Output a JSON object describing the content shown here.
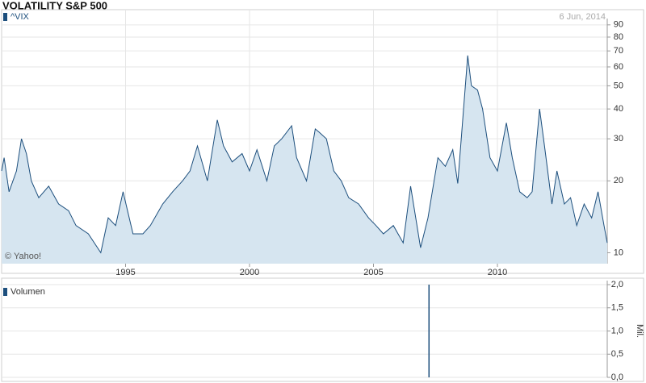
{
  "chart_data": [
    {
      "type": "line",
      "title": "VOLATILITY S&P 500",
      "date": "6 Jun, 2014",
      "source": "© Yahoo!",
      "log_y": true,
      "grid": true,
      "xlim": [
        1990,
        2014.43
      ],
      "xticks": [
        1995,
        2000,
        2005,
        2010
      ],
      "ylim": [
        9,
        92
      ],
      "yticks": [
        10,
        20,
        30,
        40,
        50,
        60,
        70,
        80,
        90
      ],
      "x": [
        1990.0,
        1990.1,
        1990.3,
        1990.6,
        1990.8,
        1991.0,
        1991.2,
        1991.5,
        1991.9,
        1992.3,
        1992.7,
        1993.0,
        1993.5,
        1994.0,
        1994.3,
        1994.6,
        1994.9,
        1995.3,
        1995.7,
        1996.0,
        1996.5,
        1996.9,
        1997.3,
        1997.6,
        1997.9,
        1998.3,
        1998.7,
        1998.95,
        1999.3,
        1999.7,
        2000.0,
        2000.3,
        2000.7,
        2001.0,
        2001.3,
        2001.7,
        2001.9,
        2002.3,
        2002.65,
        2002.8,
        2003.1,
        2003.4,
        2003.7,
        2004.0,
        2004.4,
        2004.8,
        2005.1,
        2005.4,
        2005.8,
        2006.2,
        2006.5,
        2006.9,
        2007.2,
        2007.6,
        2007.9,
        2008.2,
        2008.4,
        2008.8,
        2008.95,
        2009.2,
        2009.4,
        2009.7,
        2010.0,
        2010.36,
        2010.6,
        2010.9,
        2011.2,
        2011.4,
        2011.7,
        2011.9,
        2012.2,
        2012.4,
        2012.7,
        2012.95,
        2013.2,
        2013.5,
        2013.8,
        2014.06,
        2014.3,
        2014.43
      ],
      "series": [
        {
          "name": "^VIX",
          "color": "#1d4f7d",
          "fill": "#d6e5f0",
          "values": [
            22,
            25,
            18,
            22,
            30,
            26,
            20,
            17,
            19,
            16,
            15,
            13,
            12,
            10,
            14,
            13,
            18,
            12,
            12,
            13,
            16,
            18,
            20,
            22,
            28,
            20,
            36,
            28,
            24,
            26,
            22,
            27,
            20,
            28,
            30,
            34,
            25,
            20,
            33,
            32,
            30,
            22,
            20,
            17,
            16,
            14,
            13,
            12,
            13,
            11,
            19,
            10.5,
            14,
            25,
            23,
            27,
            19.5,
            67,
            50,
            48,
            40,
            25,
            22,
            35,
            25,
            18,
            17,
            18,
            40,
            28,
            16,
            22,
            16,
            17,
            13,
            16,
            14,
            18,
            13,
            11
          ]
        }
      ]
    },
    {
      "type": "bar",
      "y_label": "Mil.",
      "xlim": [
        1990,
        2014.43
      ],
      "ylim": [
        0,
        2.0
      ],
      "yticks": [
        {
          "value": 0,
          "label": "0,0"
        },
        {
          "value": 0.5,
          "label": "0,5"
        },
        {
          "value": 1.0,
          "label": "1,0"
        },
        {
          "value": 1.5,
          "label": "1,5"
        },
        {
          "value": 2.0,
          "label": "2,0"
        }
      ],
      "x": [
        2007.24
      ],
      "series": [
        {
          "name": "Volumen",
          "color": "#1d4f7d",
          "values": [
            2.0
          ]
        }
      ]
    }
  ]
}
